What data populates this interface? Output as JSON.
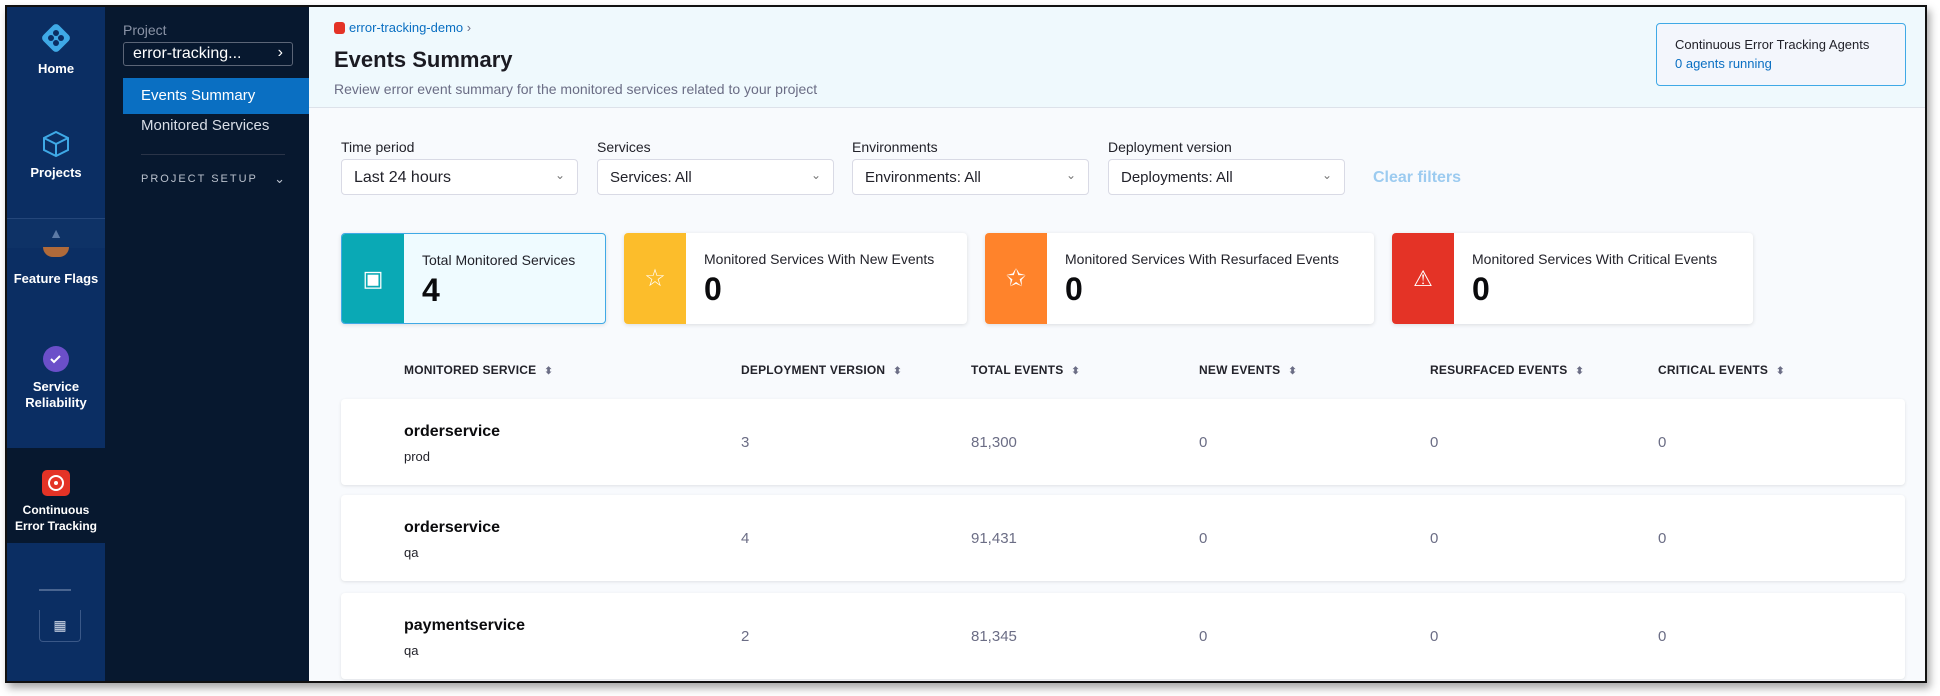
{
  "nav": {
    "items": [
      {
        "label": "Home",
        "icon": "harness-logo-icon"
      },
      {
        "label": "Projects",
        "icon": "cube-icon"
      },
      {
        "label": "Feature Flags",
        "icon": "feature-flags-icon"
      },
      {
        "label": "Service Reliability",
        "icon": "service-reliability-icon"
      },
      {
        "label": "Continuous Error Tracking",
        "icon": "error-tracking-icon",
        "active": true
      }
    ]
  },
  "sidebar": {
    "project_label": "Project",
    "project_value": "error-tracking...",
    "items": [
      {
        "label": "Events Summary",
        "active": true
      },
      {
        "label": "Monitored Services"
      }
    ],
    "section": "PROJECT SETUP"
  },
  "header": {
    "breadcrumb": "error-tracking-demo",
    "title": "Events Summary",
    "subtitle": "Review error event summary for the monitored services related to your project",
    "agents_title": "Continuous Error Tracking Agents",
    "agents_link": "0 agents running"
  },
  "filters": [
    {
      "label": "Time period",
      "value": "Last 24 hours"
    },
    {
      "label": "Services",
      "value": "Services: All"
    },
    {
      "label": "Environments",
      "value": "Environments: All"
    },
    {
      "label": "Deployment version",
      "value": "Deployments: All"
    }
  ],
  "clear_filters": "Clear filters",
  "cards": [
    {
      "title": "Total Monitored Services",
      "value": "4",
      "color": "#0aa9b5"
    },
    {
      "title": "Monitored Services With New Events",
      "value": "0",
      "color": "#fcbd2b"
    },
    {
      "title": "Monitored Services With Resurfaced Events",
      "value": "0",
      "color": "#ff832b"
    },
    {
      "title": "Monitored Services With Critical Events",
      "value": "0",
      "color": "#e43326"
    }
  ],
  "table": {
    "columns": [
      "MONITORED SERVICE",
      "DEPLOYMENT VERSION",
      "TOTAL EVENTS",
      "NEW EVENTS",
      "RESURFACED EVENTS",
      "CRITICAL EVENTS"
    ],
    "rows": [
      {
        "service": "orderservice",
        "env": "prod",
        "version": "3",
        "total": "81,300",
        "new": "0",
        "resurfaced": "0",
        "critical": "0"
      },
      {
        "service": "orderservice",
        "env": "qa",
        "version": "4",
        "total": "91,431",
        "new": "0",
        "resurfaced": "0",
        "critical": "0"
      },
      {
        "service": "paymentservice",
        "env": "qa",
        "version": "2",
        "total": "81,345",
        "new": "0",
        "resurfaced": "0",
        "critical": "0"
      }
    ]
  }
}
